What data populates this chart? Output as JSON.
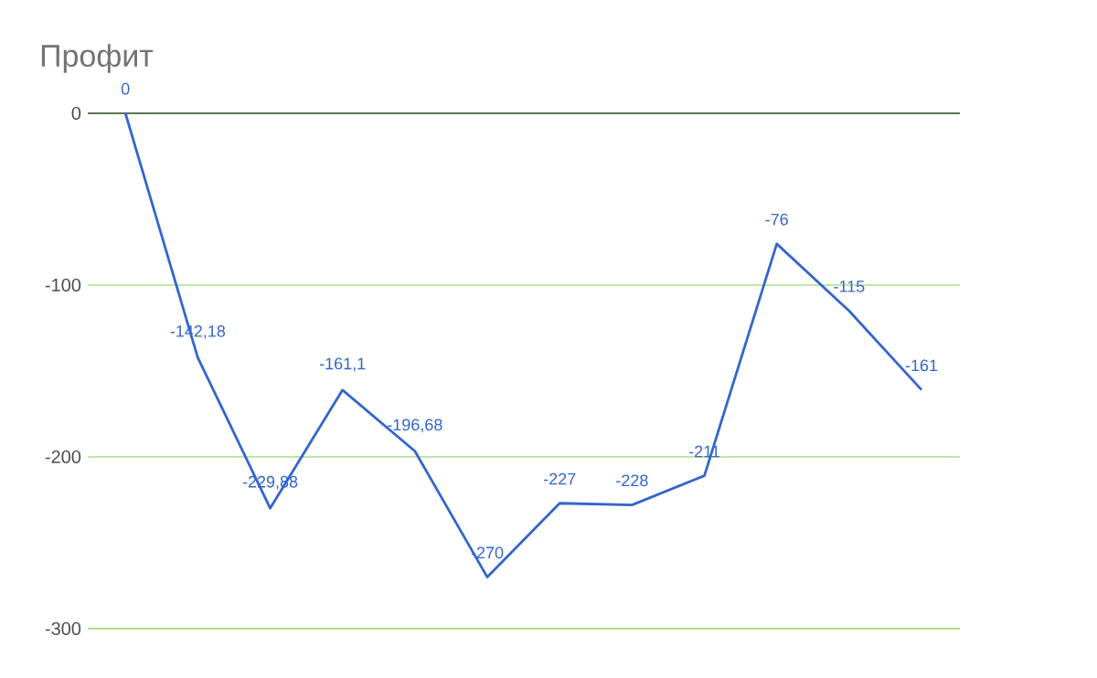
{
  "chart_data": {
    "type": "line",
    "title": "Профит",
    "categories": [
      null,
      null,
      null,
      null,
      null,
      null,
      null,
      null,
      null,
      null,
      null,
      null
    ],
    "series": [
      {
        "color": "#3366cc",
        "values": [
          0,
          -142.18,
          -229.88,
          -161.1,
          -196.68,
          -270,
          -227,
          -228,
          -211,
          -76,
          -115,
          -161
        ],
        "value_labels": [
          "0",
          "-142,18",
          "-229,88",
          "-161,1",
          "-196,68",
          "-270",
          "-227",
          "-228",
          "-211",
          "-76",
          "-115",
          "-161"
        ]
      }
    ],
    "ylim": [
      -300,
      0
    ],
    "yticks": [
      0,
      -100,
      -200,
      -300
    ],
    "grid": "y",
    "marker": "none",
    "line_style": "solid"
  }
}
